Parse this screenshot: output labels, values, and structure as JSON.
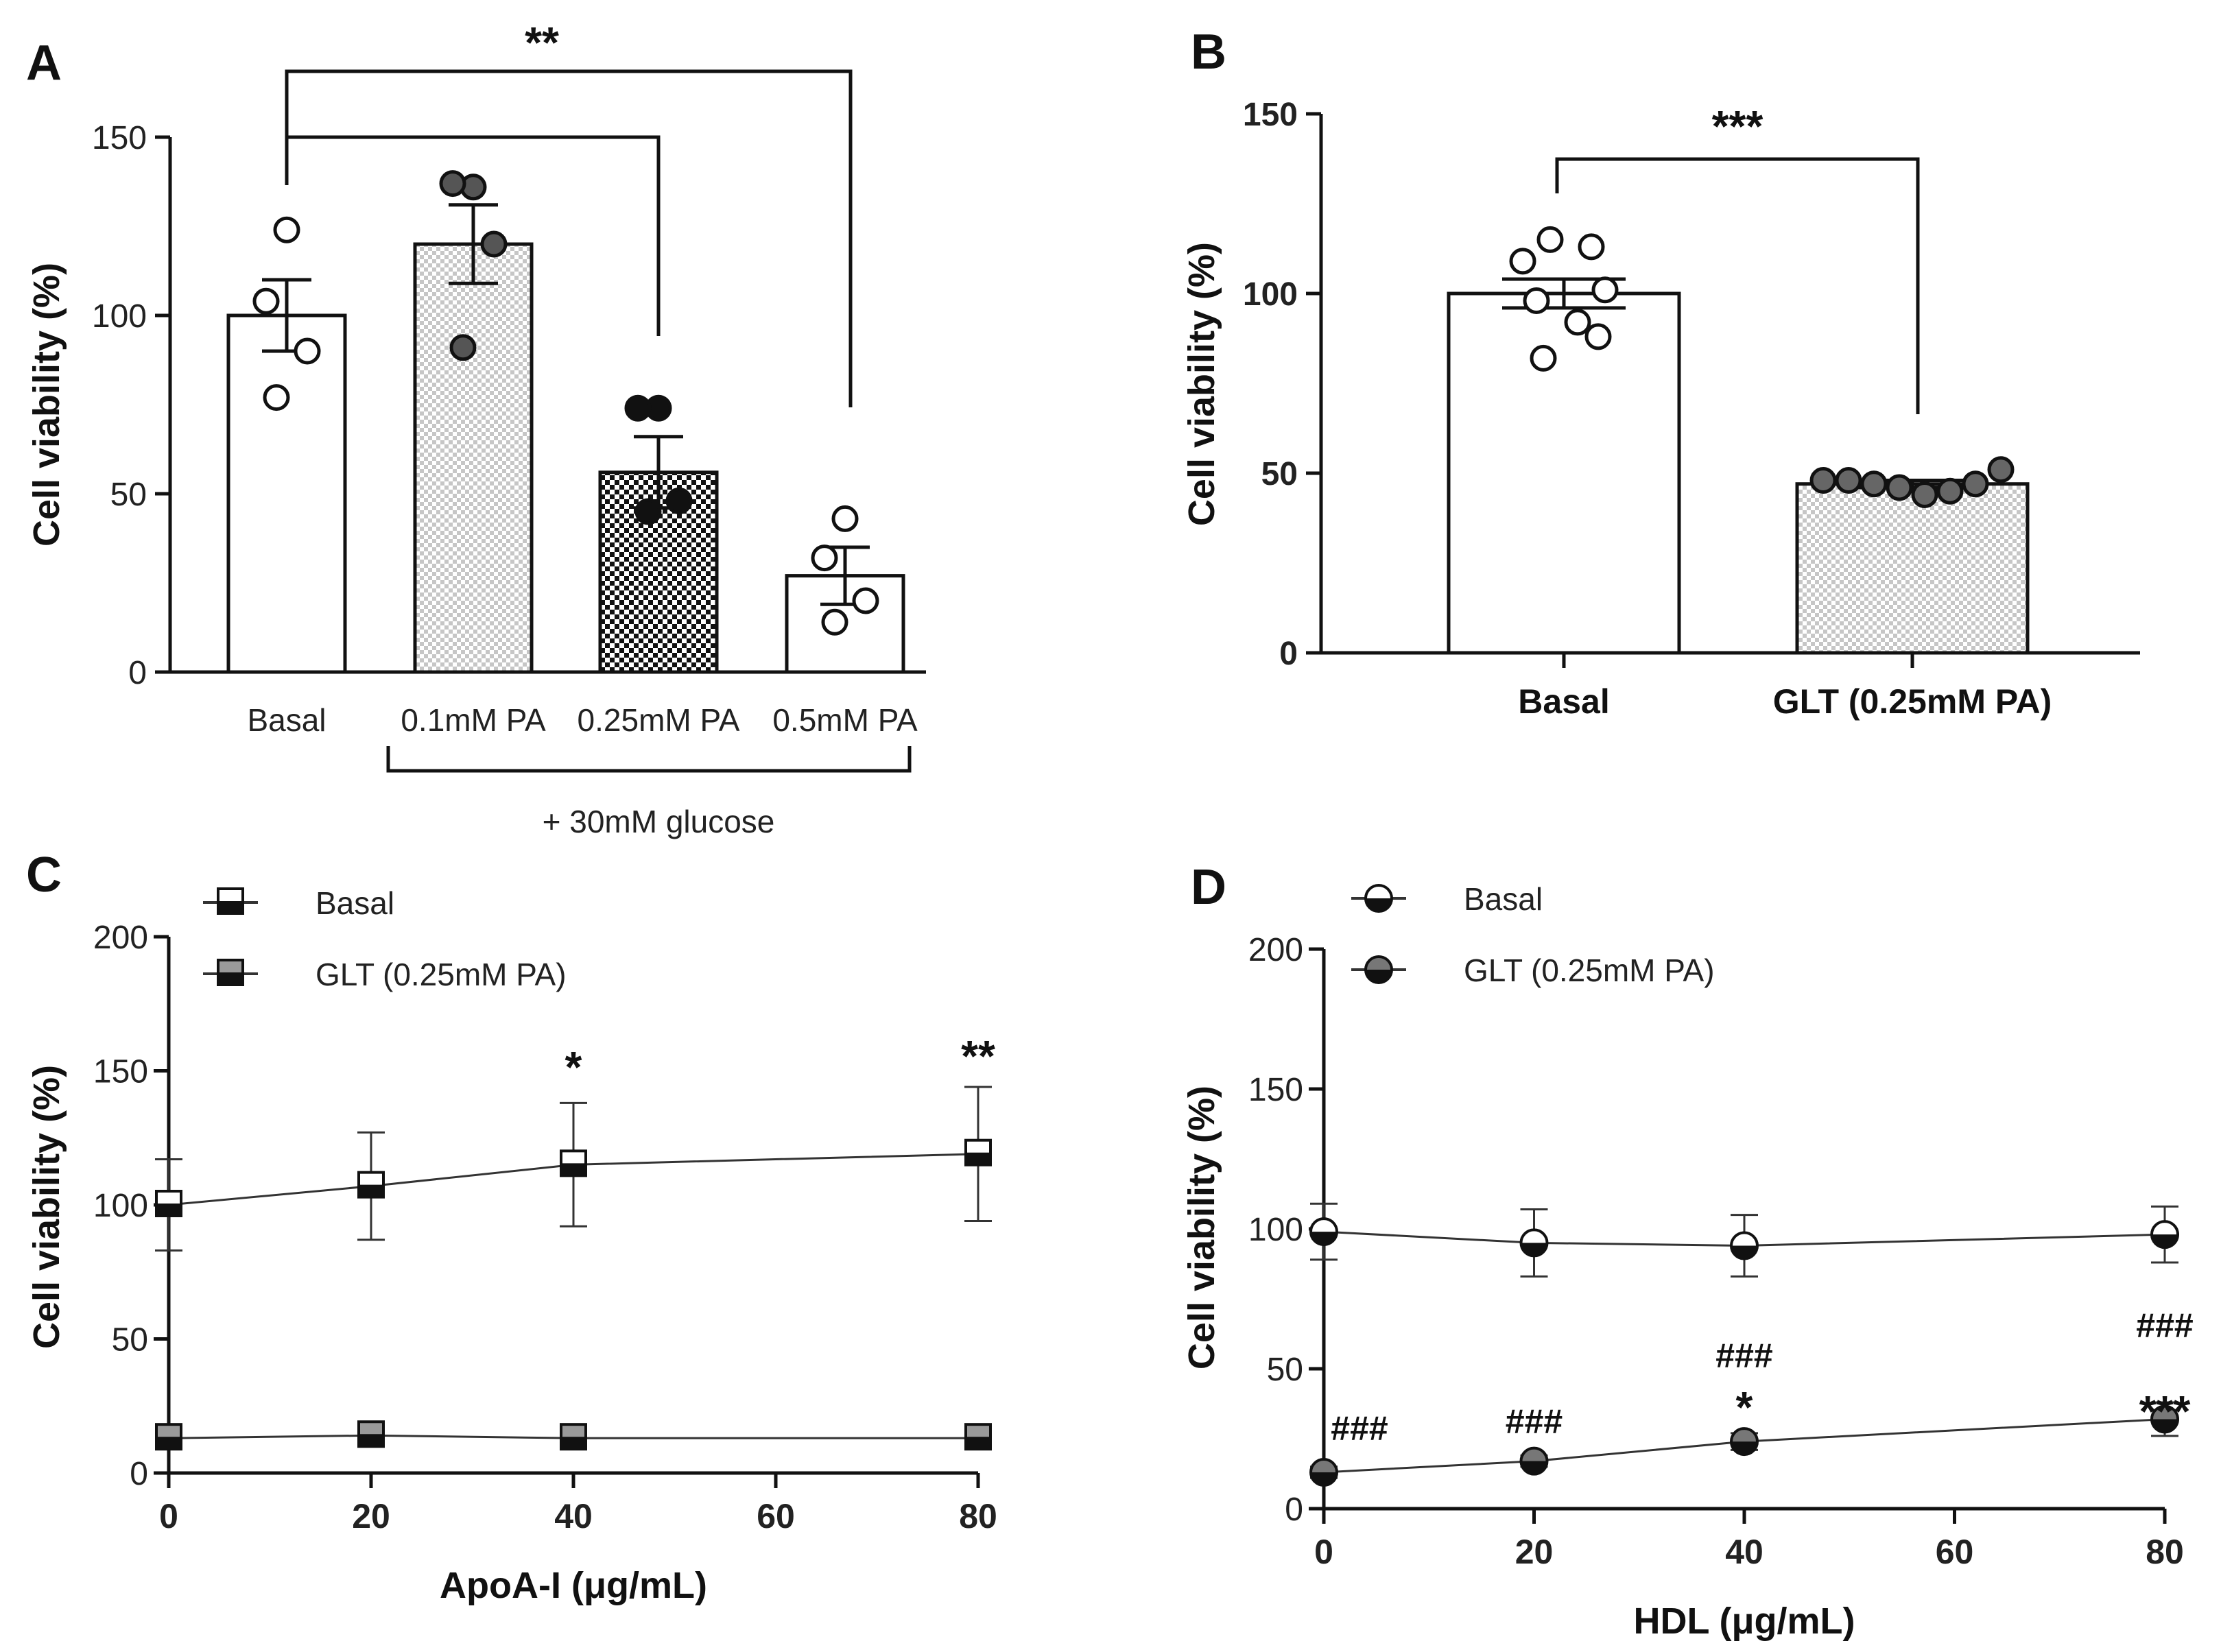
{
  "chart_data": [
    {
      "panel": "A",
      "type": "bar",
      "ylabel": "Cell viability (%)",
      "ylim": [
        0,
        150
      ],
      "yticks": [
        "0",
        "50",
        "100",
        "150"
      ],
      "categories": [
        "Basal",
        "0.1mM PA",
        "0.25mM PA",
        "0.5mM PA"
      ],
      "values": [
        100,
        120,
        56,
        27
      ],
      "sem": [
        10,
        11,
        10,
        8
      ],
      "points": [
        [
          124,
          104,
          90,
          77
        ],
        [
          136,
          137,
          120,
          91
        ],
        [
          74,
          74,
          48,
          45
        ],
        [
          43,
          32,
          20,
          14
        ]
      ],
      "group_label": "+ 30mM glucose",
      "significance": [
        {
          "from": "Basal",
          "to": "0.25mM PA",
          "label": ""
        },
        {
          "from": "Basal",
          "to": "0.5mM PA",
          "label": "**"
        }
      ]
    },
    {
      "panel": "B",
      "type": "bar",
      "ylabel": "Cell viability (%)",
      "ylim": [
        0,
        150
      ],
      "yticks": [
        "0",
        "50",
        "100",
        "150"
      ],
      "categories": [
        "Basal",
        "GLT (0.25mM PA)"
      ],
      "values": [
        100,
        47
      ],
      "sem": [
        4,
        1
      ],
      "points": [
        [
          115,
          113,
          109,
          101,
          98,
          92,
          88,
          82
        ],
        [
          48,
          48,
          47,
          46,
          44,
          45,
          47,
          51
        ]
      ],
      "significance": [
        {
          "from": "Basal",
          "to": "GLT (0.25mM PA)",
          "label": "***"
        }
      ]
    },
    {
      "panel": "C",
      "type": "line",
      "xlabel": "ApoA-I (μg/mL)",
      "ylabel": "Cell viability (%)",
      "xlim": [
        0,
        80
      ],
      "ylim": [
        0,
        200
      ],
      "xticks": [
        "0",
        "20",
        "40",
        "60",
        "80"
      ],
      "yticks": [
        "0",
        "50",
        "100",
        "150",
        "200"
      ],
      "x": [
        0,
        20,
        40,
        80
      ],
      "series": [
        {
          "name": "Basal",
          "values": [
            100,
            107,
            115,
            119
          ],
          "sem": [
            17,
            20,
            23,
            25
          ]
        },
        {
          "name": "GLT (0.25mM PA)",
          "values": [
            13,
            14,
            13,
            13
          ],
          "sem": [
            2,
            2,
            2,
            2
          ]
        }
      ],
      "annotations": [
        {
          "x": 40,
          "label": "*"
        },
        {
          "x": 80,
          "label": "**"
        }
      ]
    },
    {
      "panel": "D",
      "type": "line",
      "xlabel": "HDL (μg/mL)",
      "ylabel": "Cell viability (%)",
      "xlim": [
        0,
        80
      ],
      "ylim": [
        0,
        200
      ],
      "xticks": [
        "0",
        "20",
        "40",
        "60",
        "80"
      ],
      "yticks": [
        "0",
        "50",
        "100",
        "150",
        "200"
      ],
      "x": [
        0,
        20,
        40,
        80
      ],
      "series": [
        {
          "name": "Basal",
          "values": [
            99,
            95,
            94,
            98
          ],
          "sem": [
            10,
            12,
            11,
            10
          ]
        },
        {
          "name": "GLT (0.25mM PA)",
          "values": [
            13,
            17,
            24,
            32
          ],
          "sem": [
            2,
            2,
            3,
            6
          ]
        }
      ],
      "annotations": [
        {
          "x": 0,
          "label": "###"
        },
        {
          "x": 20,
          "label": "###"
        },
        {
          "x": 40,
          "label": "###"
        },
        {
          "x": 40,
          "label": "*"
        },
        {
          "x": 80,
          "label": "###"
        },
        {
          "x": 80,
          "label": "***"
        }
      ]
    }
  ]
}
